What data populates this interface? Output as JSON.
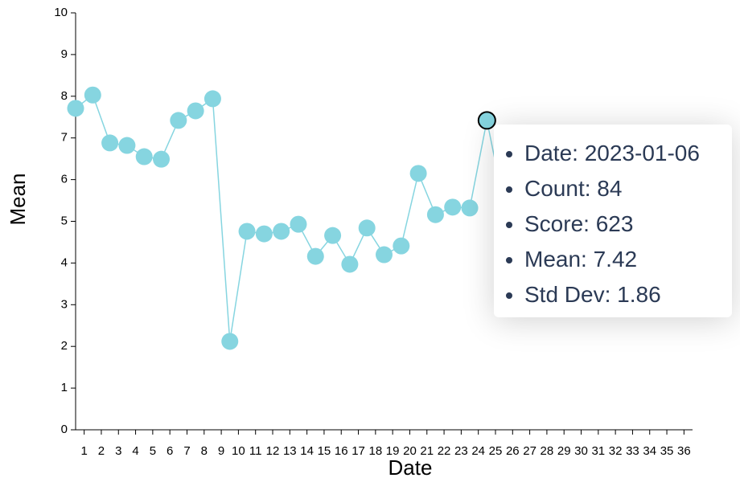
{
  "chart_data": {
    "type": "line",
    "x_label": "Date",
    "y_label": "Mean",
    "categories": [
      "1",
      "2",
      "3",
      "4",
      "5",
      "6",
      "7",
      "8",
      "9",
      "10",
      "11",
      "12",
      "13",
      "14",
      "15",
      "16",
      "17",
      "18",
      "19",
      "20",
      "21",
      "22",
      "23",
      "24",
      "25",
      "26",
      "27",
      "28",
      "29",
      "30",
      "31",
      "32",
      "33",
      "34",
      "35",
      "36"
    ],
    "values": [
      7.71,
      8.03,
      6.88,
      6.82,
      6.55,
      6.49,
      7.42,
      7.65,
      7.94,
      2.12,
      4.76,
      4.7,
      4.76,
      4.93,
      4.16,
      4.66,
      3.97,
      4.84,
      4.2,
      4.41,
      6.15,
      5.16,
      5.34,
      5.32,
      7.42,
      5.4,
      null,
      null,
      null,
      null,
      null,
      null,
      null,
      null,
      null,
      null
    ],
    "color": "#86d5e0",
    "highlight_index": 24,
    "ylim": [
      0,
      10
    ],
    "yticks": [
      0,
      1,
      2,
      3,
      4,
      5,
      6,
      7,
      8,
      9,
      10
    ]
  },
  "tooltip": {
    "items": [
      "Date: 2023-01-06",
      "Count: 84",
      "Score: 623",
      "Mean: 7.42",
      "Std Dev: 1.86"
    ]
  }
}
